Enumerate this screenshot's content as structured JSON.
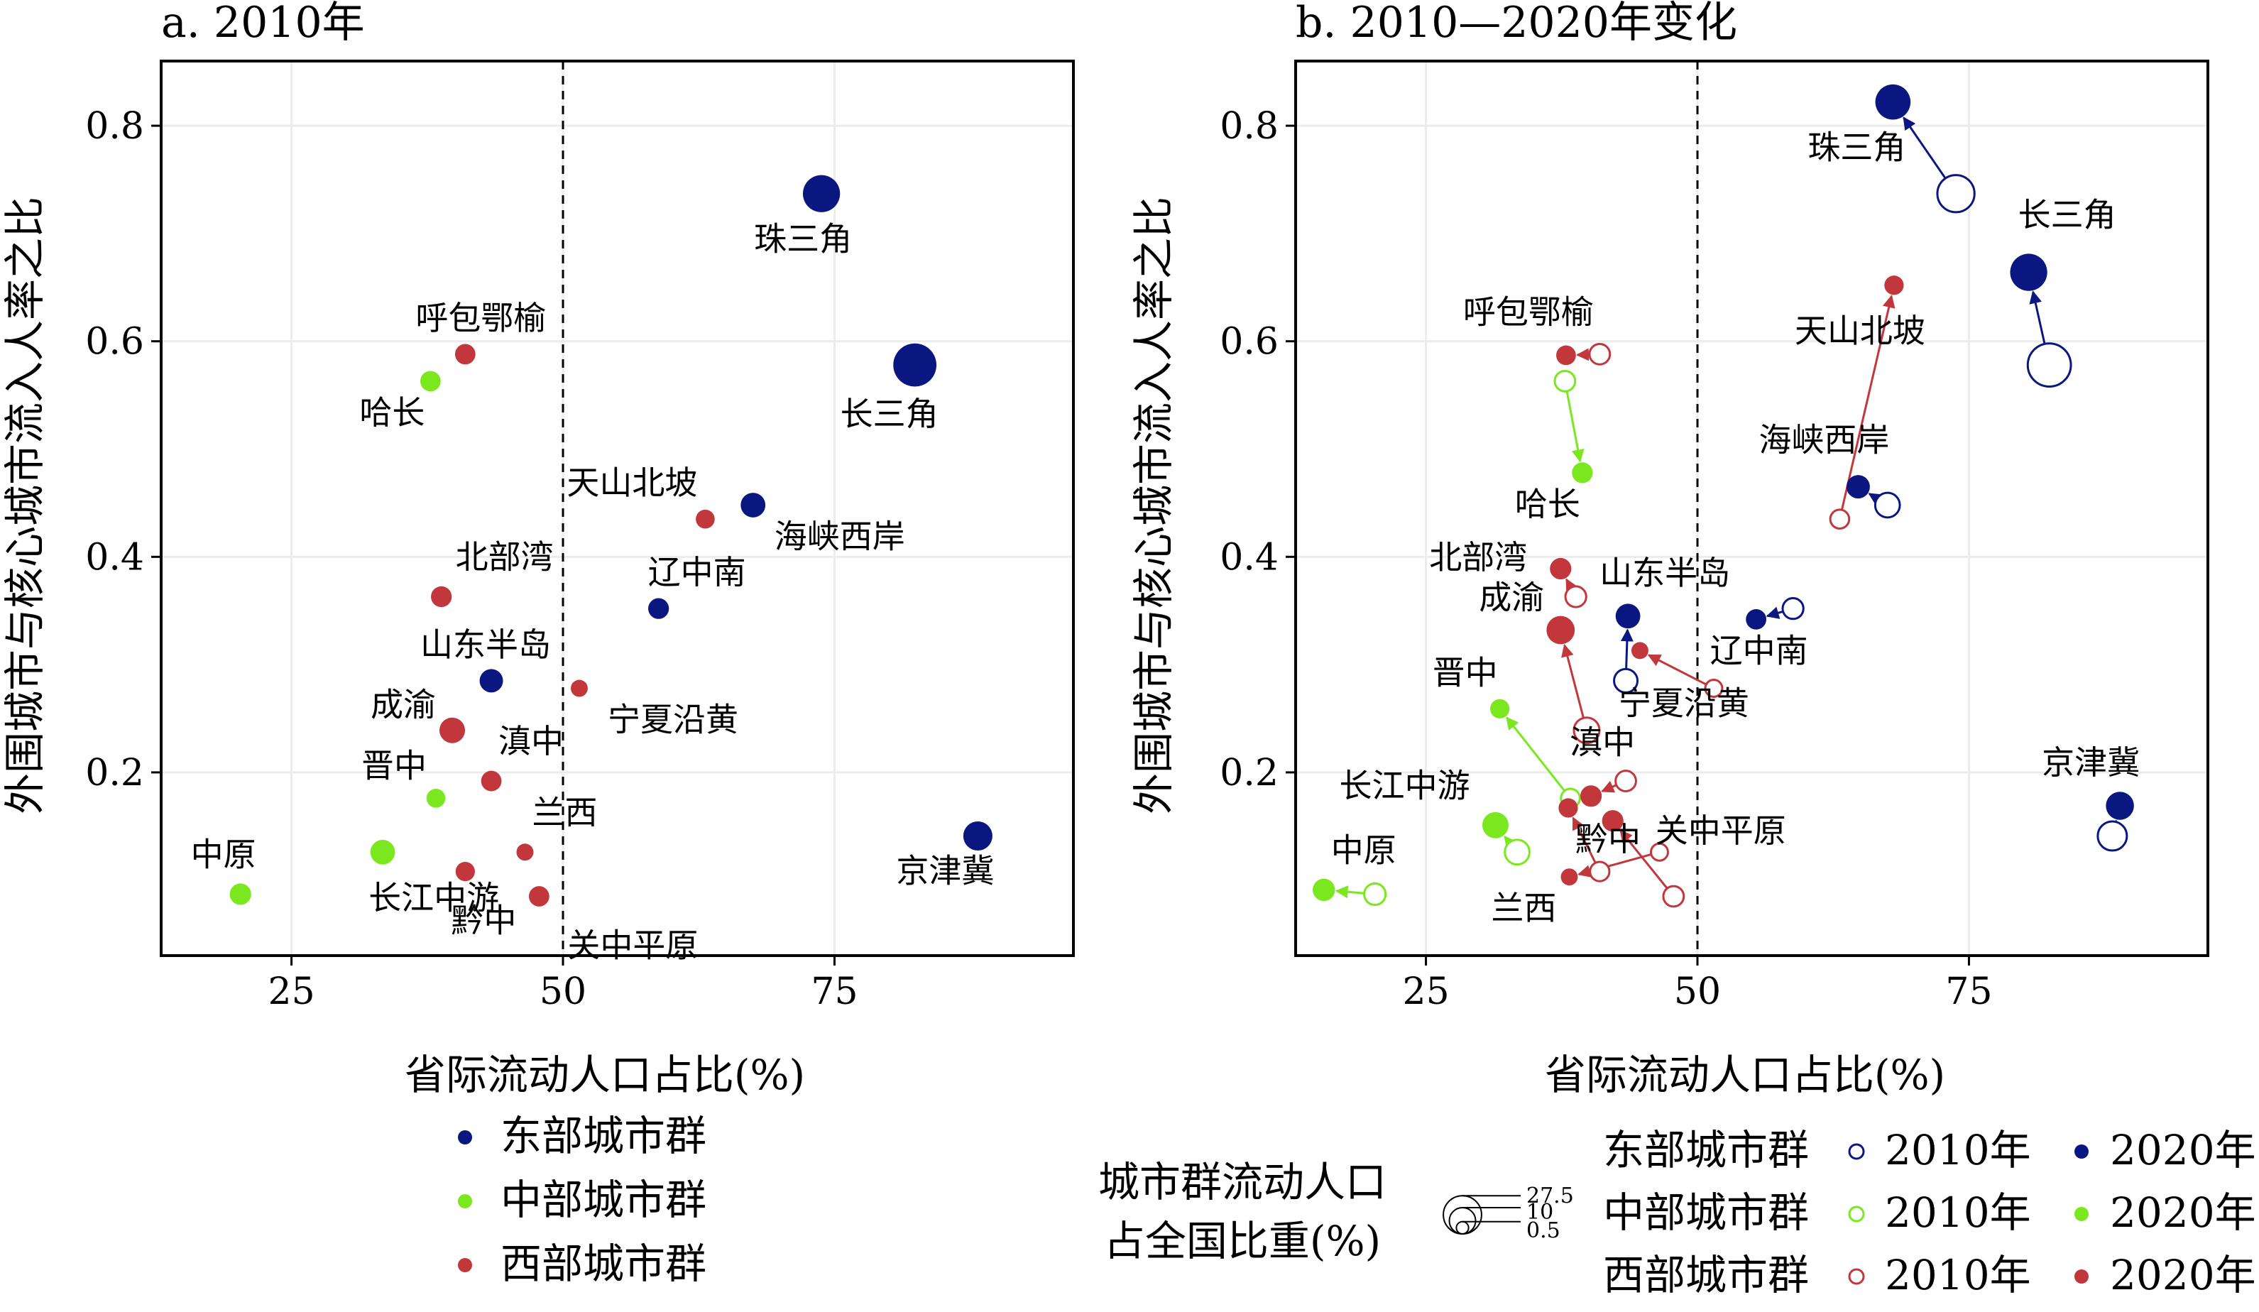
{
  "chart_data": [
    {
      "type": "scatter",
      "title": "a. 2010年",
      "xlabel": "省际流动人口占比(%)",
      "ylabel": "外围城市与核心城市流入人率之比",
      "xlim": [
        13,
        97
      ],
      "ylim": [
        0.03,
        0.86
      ],
      "xticks": [
        "25",
        "50",
        "75"
      ],
      "xtick_values": [
        25,
        50,
        75
      ],
      "yticks": [
        "0.2",
        "0.4",
        "0.6",
        "0.8"
      ],
      "ytick_values": [
        0.2,
        0.4,
        0.6,
        0.8
      ],
      "reference_line_x": 50,
      "grid": true,
      "colors": {
        "东部城市群": "#0b1780",
        "中部城市群": "#7be81f",
        "西部城市群": "#c1373b"
      },
      "legend_title": "",
      "legend": [
        {
          "name": "东部城市群",
          "color": "#0b1780"
        },
        {
          "name": "中部城市群",
          "color": "#7be81f"
        },
        {
          "name": "西部城市群",
          "color": "#c1373b"
        }
      ],
      "points": [
        {
          "label": "珠三角",
          "region": "东部城市群",
          "x": 73.8,
          "y": 0.737,
          "share": 10.5
        },
        {
          "label": "长三角",
          "region": "东部城市群",
          "x": 82.4,
          "y": 0.578,
          "share": 16.0
        },
        {
          "label": "京津冀",
          "region": "东部城市群",
          "x": 88.2,
          "y": 0.141,
          "share": 5.0
        },
        {
          "label": "海峡西岸",
          "region": "东部城市群",
          "x": 67.5,
          "y": 0.448,
          "share": 2.8
        },
        {
          "label": "辽中南",
          "region": "东部城市群",
          "x": 58.8,
          "y": 0.352,
          "share": 1.4
        },
        {
          "label": "山东半岛",
          "region": "东部城市群",
          "x": 43.4,
          "y": 0.285,
          "share": 2.3
        },
        {
          "label": "哈长",
          "region": "中部城市群",
          "x": 37.8,
          "y": 0.563,
          "share": 1.3
        },
        {
          "label": "晋中",
          "region": "中部城市群",
          "x": 38.3,
          "y": 0.176,
          "share": 0.9
        },
        {
          "label": "长江中游",
          "region": "中部城市群",
          "x": 33.4,
          "y": 0.126,
          "share": 2.8
        },
        {
          "label": "中原",
          "region": "中部城市群",
          "x": 20.3,
          "y": 0.087,
          "share": 1.6
        },
        {
          "label": "呼包鄂榆",
          "region": "西部城市群",
          "x": 41.0,
          "y": 0.588,
          "share": 1.3
        },
        {
          "label": "天山北坡",
          "region": "西部城市群",
          "x": 63.1,
          "y": 0.435,
          "share": 0.9
        },
        {
          "label": "北部湾",
          "region": "西部城市群",
          "x": 38.8,
          "y": 0.363,
          "share": 1.4
        },
        {
          "label": "宁夏沿黄",
          "region": "西部城市群",
          "x": 51.5,
          "y": 0.278,
          "share": 0.5
        },
        {
          "label": "成渝",
          "region": "西部城市群",
          "x": 39.8,
          "y": 0.239,
          "share": 3.2
        },
        {
          "label": "滇中",
          "region": "西部城市群",
          "x": 43.4,
          "y": 0.192,
          "share": 1.3
        },
        {
          "label": "兰西",
          "region": "西部城市群",
          "x": 46.5,
          "y": 0.126,
          "share": 0.5
        },
        {
          "label": "黔中",
          "region": "西部城市群",
          "x": 41.0,
          "y": 0.108,
          "share": 1.0
        },
        {
          "label": "关中平原",
          "region": "西部城市群",
          "x": 47.8,
          "y": 0.085,
          "share": 1.3
        }
      ]
    },
    {
      "type": "scatter",
      "title": "b. 2010—2020年变化",
      "xlabel": "省际流动人口占比(%)",
      "ylabel": "外围城市与核心城市流入人率之比",
      "xlim": [
        13,
        97
      ],
      "ylim": [
        0.03,
        0.86
      ],
      "xticks": [
        "25",
        "50",
        "75"
      ],
      "xtick_values": [
        25,
        50,
        75
      ],
      "yticks": [
        "0.2",
        "0.4",
        "0.6",
        "0.8"
      ],
      "ytick_values": [
        0.2,
        0.4,
        0.6,
        0.8
      ],
      "reference_line_x": 50,
      "grid": true,
      "size_legend_title": "城市群流动人口占全国比重(%)",
      "size_legend_title_lines": [
        "城市群流动人口",
        "占全国比重(%)"
      ],
      "size_legend_values": [
        "27.5",
        "10",
        "0.5"
      ],
      "size_legend_numbers": [
        27.5,
        10,
        0.5
      ],
      "color_legend": [
        {
          "group": "东部城市群",
          "color": "#0b1780",
          "open_label": "2010年",
          "filled_label": "2020年"
        },
        {
          "group": "中部城市群",
          "color": "#7be81f",
          "open_label": "2010年",
          "filled_label": "2020年"
        },
        {
          "group": "西部城市群",
          "color": "#c1373b",
          "open_label": "2010年",
          "filled_label": "2020年"
        }
      ],
      "series": [
        {
          "name": "2010年",
          "style": "open circle"
        },
        {
          "name": "2020年",
          "style": "filled circle"
        }
      ],
      "points": [
        {
          "label": "珠三角",
          "region": "东部城市群",
          "x2010": 73.8,
          "y2010": 0.737,
          "share2010": 10.5,
          "x2020": 68.0,
          "y2020": 0.822,
          "share2020": 9.0
        },
        {
          "label": "长三角",
          "region": "东部城市群",
          "x2010": 82.4,
          "y2010": 0.578,
          "share2010": 16.0,
          "x2020": 80.5,
          "y2020": 0.664,
          "share2020": 10.5
        },
        {
          "label": "京津冀",
          "region": "东部城市群",
          "x2010": 88.2,
          "y2010": 0.141,
          "share2010": 5.0,
          "x2020": 88.9,
          "y2020": 0.169,
          "share2020": 4.4
        },
        {
          "label": "海峡西岸",
          "region": "东部城市群",
          "x2010": 67.5,
          "y2010": 0.448,
          "share2010": 2.8,
          "x2020": 64.8,
          "y2020": 0.465,
          "share2020": 2.3
        },
        {
          "label": "辽中南",
          "region": "东部城市群",
          "x2010": 58.8,
          "y2010": 0.352,
          "share2010": 1.4,
          "x2020": 55.4,
          "y2020": 0.342,
          "share2020": 1.3
        },
        {
          "label": "山东半岛",
          "region": "东部城市群",
          "x2010": 43.4,
          "y2010": 0.285,
          "share2010": 2.3,
          "x2020": 43.6,
          "y2020": 0.345,
          "share2020": 2.8
        },
        {
          "label": "哈长",
          "region": "中部城市群",
          "x2010": 37.8,
          "y2010": 0.563,
          "share2010": 1.3,
          "x2020": 39.4,
          "y2020": 0.478,
          "share2020": 1.4
        },
        {
          "label": "晋中",
          "region": "中部城市群",
          "x2010": 38.3,
          "y2010": 0.176,
          "share2010": 0.9,
          "x2020": 31.8,
          "y2020": 0.259,
          "share2020": 1.0
        },
        {
          "label": "长江中游",
          "region": "中部城市群",
          "x2010": 33.4,
          "y2010": 0.126,
          "share2010": 2.8,
          "x2020": 31.4,
          "y2020": 0.151,
          "share2020": 3.5
        },
        {
          "label": "中原",
          "region": "中部城市群",
          "x2010": 20.3,
          "y2010": 0.087,
          "share2010": 1.6,
          "x2020": 15.6,
          "y2020": 0.091,
          "share2020": 1.9
        },
        {
          "label": "呼包鄂榆",
          "region": "西部城市群",
          "x2010": 41.0,
          "y2010": 0.588,
          "share2010": 1.3,
          "x2020": 37.9,
          "y2020": 0.587,
          "share2020": 1.1
        },
        {
          "label": "天山北坡",
          "region": "西部城市群",
          "x2010": 63.1,
          "y2010": 0.435,
          "share2010": 0.9,
          "x2020": 68.1,
          "y2020": 0.652,
          "share2020": 1.0
        },
        {
          "label": "北部湾",
          "region": "西部城市群",
          "x2010": 38.8,
          "y2010": 0.363,
          "share2010": 1.4,
          "x2020": 37.4,
          "y2020": 0.389,
          "share2020": 1.6
        },
        {
          "label": "宁夏沿黄",
          "region": "西部城市群",
          "x2010": 51.5,
          "y2010": 0.278,
          "share2010": 0.5,
          "x2020": 44.7,
          "y2020": 0.313,
          "share2020": 0.5
        },
        {
          "label": "成渝",
          "region": "西部城市群",
          "x2010": 39.8,
          "y2010": 0.239,
          "share2010": 3.2,
          "x2020": 37.4,
          "y2020": 0.332,
          "share2020": 4.5
        },
        {
          "label": "滇中",
          "region": "西部城市群",
          "x2010": 43.4,
          "y2010": 0.192,
          "share2010": 1.3,
          "x2020": 40.2,
          "y2020": 0.178,
          "share2020": 1.6
        },
        {
          "label": "兰西",
          "region": "西部城市群",
          "x2010": 46.5,
          "y2010": 0.126,
          "share2010": 0.5,
          "x2020": 38.2,
          "y2020": 0.103,
          "share2020": 0.5
        },
        {
          "label": "黔中",
          "region": "西部城市群",
          "x2010": 41.0,
          "y2010": 0.108,
          "share2010": 1.0,
          "x2020": 38.1,
          "y2020": 0.167,
          "share2020": 1.0
        },
        {
          "label": "关中平原",
          "region": "西部城市群",
          "x2010": 47.8,
          "y2010": 0.085,
          "share2010": 1.3,
          "x2020": 42.2,
          "y2020": 0.155,
          "share2020": 1.6
        }
      ]
    }
  ]
}
